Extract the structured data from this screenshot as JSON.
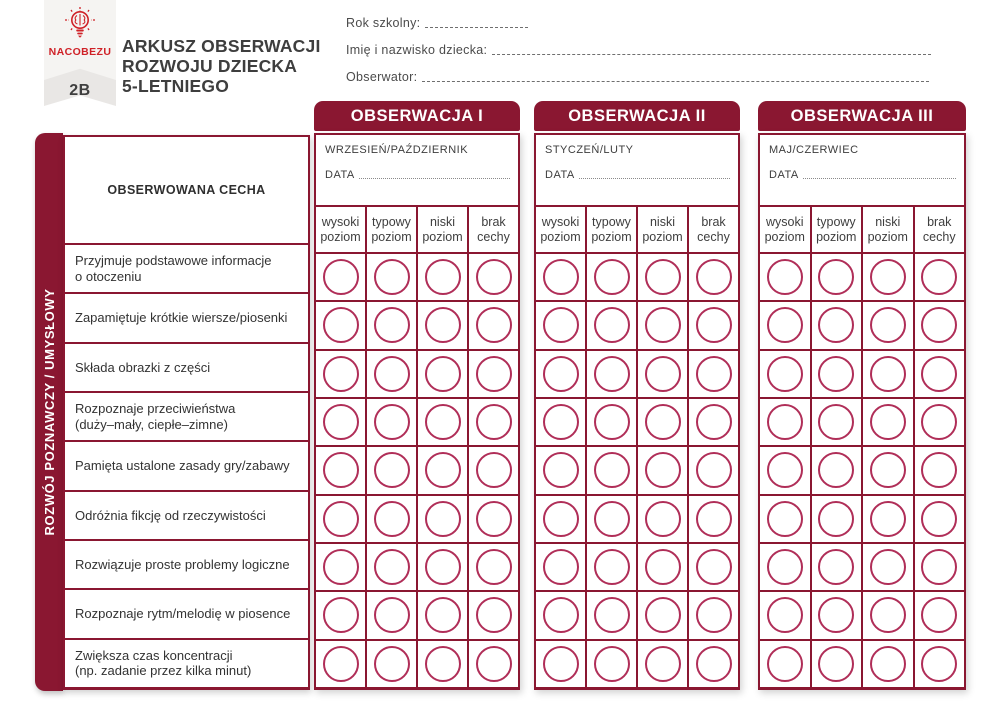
{
  "badge": {
    "brand": "NACOBEZU",
    "code": "2B",
    "icon": "lightbulb-brain-icon"
  },
  "title": "ARKUSZ OBSERWACJI\nROZWOJU DZIECKA\n5-LETNIEGO",
  "fields": {
    "school_year_label": "Rok szkolny:",
    "child_name_label": "Imię i nazwisko dziecka:",
    "observer_label": "Obserwator:"
  },
  "sidebar_label": "ROZWÓJ POZNAWCZY / UMYSŁOWY",
  "trait_table": {
    "header": "OBSERWOWANA CECHA",
    "traits": [
      "Przyjmuje podstawowe informacje\no otoczeniu",
      "Zapamiętuje krótkie wiersze/piosenki",
      "Składa obrazki z części",
      "Rozpoznaje przeciwieństwa\n(duży–mały, ciepłe–zimne)",
      "Pamięta ustalone zasady gry/zabawy",
      "Odróżnia fikcję od rzeczywistości",
      "Rozwiązuje proste problemy logiczne",
      "Rozpoznaje rytm/melodię w piosence",
      "Zwiększa czas koncentracji\n(np. zadanie przez kilka minut)"
    ]
  },
  "levels": [
    "wysoki\npoziom",
    "typowy\npoziom",
    "niski\npoziom",
    "brak\ncechy"
  ],
  "observations": [
    {
      "title": "OBSERWACJA I",
      "period": "WRZESIEŃ/PAŹDZIERNIK",
      "date_label": "DATA"
    },
    {
      "title": "OBSERWACJA II",
      "period": "STYCZEŃ/LUTY",
      "date_label": "DATA"
    },
    {
      "title": "OBSERWACJA III",
      "period": "MAJ/CZERWIEC",
      "date_label": "DATA"
    }
  ],
  "colors": {
    "maroon": "#8a1731",
    "circle_stroke": "#b02e58",
    "brand_red": "#cf2127"
  }
}
